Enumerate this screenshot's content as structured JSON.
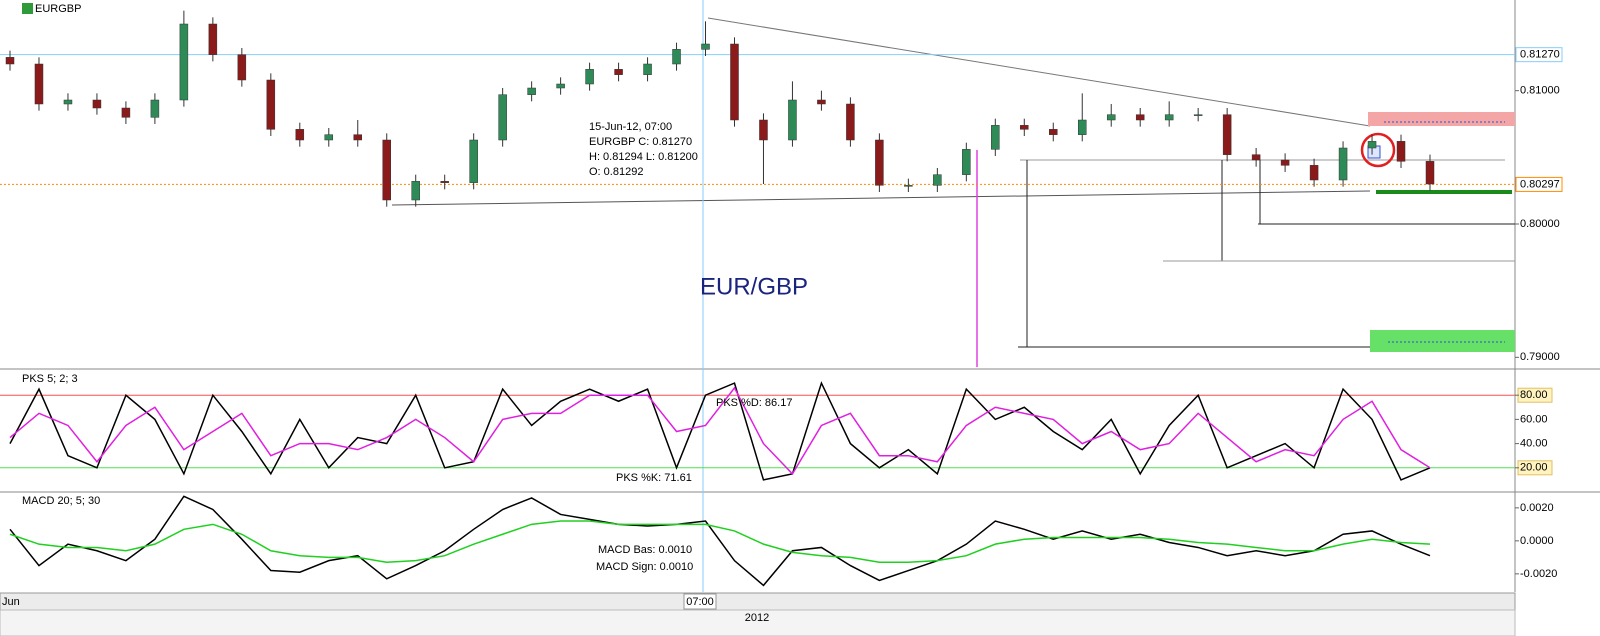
{
  "symbol": "EURGBP",
  "instrument_label": "EUR/GBP",
  "info": {
    "date": "15-Jun-12, 07:00",
    "close": "EURGBP   C: 0.81270",
    "high_low": "H: 0.81294   L: 0.81200",
    "open": "O: 0.81292"
  },
  "time_axis": {
    "labels": [
      "Jun",
      "07:00"
    ],
    "year": "2012"
  },
  "chart_data": [
    {
      "type": "candlestick",
      "color_up": "#2e8b57",
      "color_down": "#8b1a1a",
      "open": [
        0.8125,
        0.812,
        0.809,
        0.8093,
        0.8087,
        0.808,
        0.8093,
        0.815,
        0.8127,
        0.8108,
        0.8071,
        0.8063,
        0.8067,
        0.8063,
        0.8018,
        0.8032,
        0.8031,
        0.8063,
        0.8097,
        0.8102,
        0.8105,
        0.8116,
        0.8112,
        0.812,
        0.8131,
        0.8135,
        0.8078,
        0.8063,
        0.8093,
        0.809,
        0.8063,
        0.8029,
        0.8029,
        0.8037,
        0.8056,
        0.8074,
        0.8071,
        0.8067,
        0.8078,
        0.8082,
        0.8078,
        0.8082,
        0.8082,
        0.8052,
        0.8048,
        0.8044,
        0.8033,
        0.8057,
        0.8062,
        0.8047
      ],
      "high": [
        0.813,
        0.8125,
        0.8098,
        0.8098,
        0.8092,
        0.8098,
        0.816,
        0.8155,
        0.8132,
        0.8113,
        0.8076,
        0.8072,
        0.8078,
        0.8068,
        0.8037,
        0.8037,
        0.8068,
        0.8102,
        0.8107,
        0.811,
        0.8121,
        0.8121,
        0.8125,
        0.8136,
        0.8152,
        0.814,
        0.8083,
        0.8107,
        0.81,
        0.8095,
        0.8068,
        0.8034,
        0.8042,
        0.8061,
        0.8079,
        0.8079,
        0.8076,
        0.8098,
        0.809,
        0.8087,
        0.8092,
        0.8087,
        0.8087,
        0.8057,
        0.8053,
        0.8049,
        0.8062,
        0.8067,
        0.8067,
        0.8052
      ],
      "low": [
        0.8115,
        0.8085,
        0.8085,
        0.8082,
        0.8075,
        0.8075,
        0.8088,
        0.8122,
        0.8103,
        0.8066,
        0.8058,
        0.8058,
        0.8058,
        0.8013,
        0.8013,
        0.8026,
        0.8026,
        0.8058,
        0.8092,
        0.8097,
        0.81,
        0.8107,
        0.8107,
        0.8115,
        0.8126,
        0.8073,
        0.803,
        0.8058,
        0.8085,
        0.8058,
        0.8024,
        0.8024,
        0.8024,
        0.8032,
        0.8051,
        0.8066,
        0.8062,
        0.8062,
        0.8073,
        0.8073,
        0.8073,
        0.8077,
        0.8047,
        0.8043,
        0.8039,
        0.8028,
        0.8028,
        0.8052,
        0.8042,
        0.8025
      ],
      "close": [
        0.812,
        0.809,
        0.8093,
        0.8087,
        0.808,
        0.8093,
        0.815,
        0.8127,
        0.8108,
        0.8071,
        0.8063,
        0.8067,
        0.8063,
        0.8018,
        0.8032,
        0.8031,
        0.8063,
        0.8097,
        0.8102,
        0.8105,
        0.8116,
        0.8112,
        0.812,
        0.8131,
        0.8135,
        0.8078,
        0.8063,
        0.8093,
        0.809,
        0.8063,
        0.8029,
        0.8029,
        0.8037,
        0.8056,
        0.8074,
        0.8071,
        0.8067,
        0.8078,
        0.8082,
        0.8078,
        0.8082,
        0.8082,
        0.8052,
        0.8048,
        0.8044,
        0.8033,
        0.8057,
        0.8062,
        0.8047,
        0.803
      ],
      "ylim": [
        0.7892,
        0.8168
      ],
      "yticks": [
        {
          "value": 0.79,
          "label": "0.79000"
        },
        {
          "value": 0.8,
          "label": "0.80000"
        },
        {
          "value": 0.81,
          "label": "0.81000"
        }
      ],
      "markers": [
        {
          "value": 0.8127,
          "label": "0.81270",
          "color": "#87cefa",
          "text": "#000000"
        },
        {
          "value": 0.80297,
          "label": "0.80297",
          "color": "#ff8c00",
          "text": "#e00000"
        }
      ]
    },
    {
      "type": "line",
      "title": "PKS 5; 2; 3",
      "annotations": [
        "PKS %D: 86.17",
        "PKS %K: 71.61"
      ],
      "series": [
        {
          "name": "PKS %K",
          "color": "#000000",
          "values": [
            40,
            85,
            30,
            20,
            80,
            60,
            15,
            80,
            50,
            15,
            60,
            20,
            45,
            40,
            80,
            20,
            25,
            85,
            55,
            75,
            85,
            75,
            85,
            20,
            80,
            90,
            10,
            15,
            90,
            40,
            20,
            35,
            15,
            85,
            60,
            70,
            50,
            35,
            60,
            15,
            55,
            80,
            20,
            30,
            40,
            20,
            85,
            60,
            10,
            20
          ]
        },
        {
          "name": "PKS %D",
          "color": "#e020e0",
          "values": [
            45,
            65,
            55,
            25,
            55,
            70,
            35,
            50,
            65,
            30,
            40,
            40,
            35,
            45,
            60,
            45,
            25,
            60,
            65,
            65,
            80,
            80,
            80,
            50,
            55,
            86,
            40,
            15,
            55,
            65,
            30,
            30,
            25,
            55,
            70,
            65,
            60,
            40,
            50,
            35,
            40,
            65,
            45,
            25,
            35,
            30,
            60,
            75,
            35,
            20
          ]
        }
      ],
      "ylim": [
        0,
        100
      ],
      "yticks": [
        {
          "value": 20,
          "label": "20.00"
        },
        {
          "value": 40,
          "label": "40.00"
        },
        {
          "value": 60,
          "label": "60.00"
        },
        {
          "value": 80,
          "label": "80.00"
        }
      ],
      "levels": [
        {
          "value": 80,
          "color": "#ff5050"
        },
        {
          "value": 20,
          "color": "#50e050"
        }
      ]
    },
    {
      "type": "line",
      "title": "MACD 20; 5; 30",
      "annotations": [
        "MACD Bas: 0.0010",
        "MACD Sign: 0.0010"
      ],
      "series": [
        {
          "name": "MACD Bas",
          "color": "#000000",
          "values": [
            0.0007,
            -0.0015,
            -0.0002,
            -0.0006,
            -0.0012,
            0.0001,
            0.0027,
            0.0019,
            0.0001,
            -0.0018,
            -0.0019,
            -0.0012,
            -0.0009,
            -0.0023,
            -0.0015,
            -0.0006,
            0.0007,
            0.0019,
            0.0026,
            0.0016,
            0.0013,
            0.001,
            0.0009,
            0.001,
            0.0012,
            -0.0012,
            -0.0027,
            -0.0006,
            -0.0004,
            -0.0015,
            -0.0024,
            -0.0018,
            -0.0012,
            -0.0002,
            0.0012,
            0.0007,
            0.0001,
            0.0006,
            0.0001,
            0.0004,
            -0.0001,
            -0.0004,
            -0.0009,
            -0.0006,
            -0.0009,
            -0.0006,
            0.0004,
            0.0006,
            -0.0002,
            -0.0009
          ]
        },
        {
          "name": "MACD Sign",
          "color": "#20d020",
          "values": [
            0.0004,
            -0.0002,
            -0.0004,
            -0.0004,
            -0.0006,
            -0.0002,
            0.0007,
            0.001,
            0.0004,
            -0.0006,
            -0.0009,
            -0.001,
            -0.001,
            -0.0013,
            -0.0012,
            -0.0009,
            -0.0002,
            0.0004,
            0.001,
            0.0012,
            0.0012,
            0.001,
            0.001,
            0.001,
            0.001,
            0.0006,
            -0.0002,
            -0.0007,
            -0.0009,
            -0.001,
            -0.0013,
            -0.0013,
            -0.0012,
            -0.0009,
            -0.0002,
            0.0001,
            0.0002,
            0.0002,
            0.0002,
            0.0002,
            0.0001,
            -0.0001,
            -0.0002,
            -0.0004,
            -0.0006,
            -0.0006,
            -0.0002,
            0.0001,
            -0.0001,
            -0.0002
          ]
        }
      ],
      "ylim": [
        -0.0031,
        0.0029
      ],
      "yticks": [
        {
          "value": -0.002,
          "label": "-0.0020"
        },
        {
          "value": 0,
          "label": "0.0000"
        },
        {
          "value": 0.002,
          "label": "0.0020"
        }
      ]
    }
  ]
}
